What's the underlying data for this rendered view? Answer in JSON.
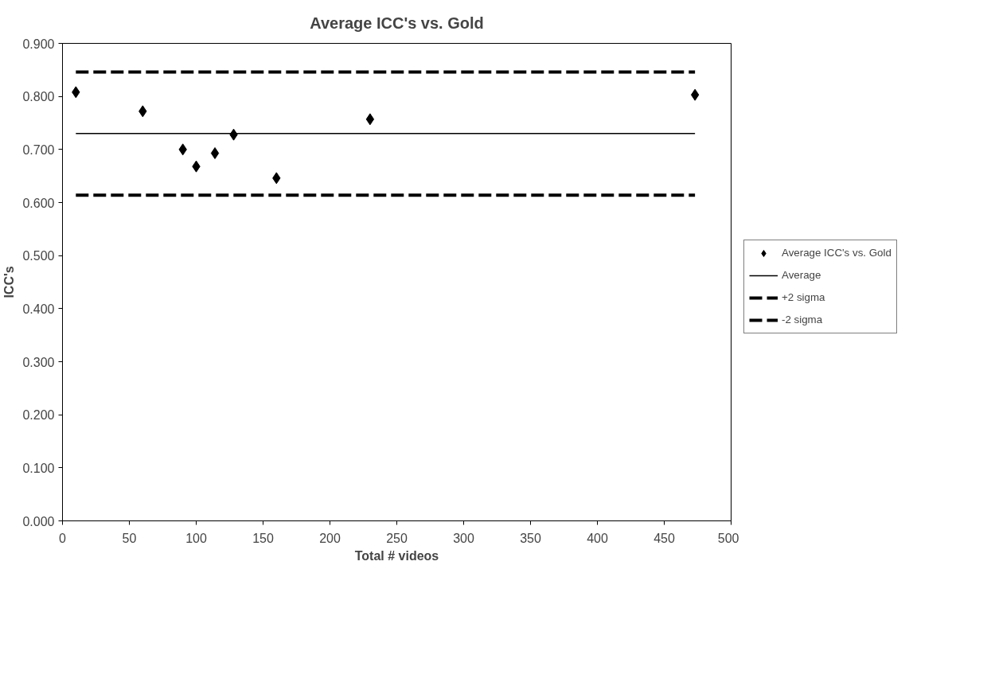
{
  "chart_data": {
    "type": "scatter",
    "title": "Average ICC's vs. Gold",
    "xlabel": "Total # videos",
    "ylabel": "ICC's",
    "xlim": [
      0,
      500
    ],
    "xticks": [
      0,
      50,
      100,
      150,
      200,
      250,
      300,
      350,
      400,
      450,
      500
    ],
    "ylim": [
      0,
      0.9
    ],
    "yticks": [
      {
        "value": 0,
        "label": "0.000"
      },
      {
        "value": 0.1,
        "label": "0.100"
      },
      {
        "value": 0.2,
        "label": "0.200"
      },
      {
        "value": 0.3,
        "label": "0.300"
      },
      {
        "value": 0.4,
        "label": "0.400"
      },
      {
        "value": 0.5,
        "label": "0.500"
      },
      {
        "value": 0.6,
        "label": "0.600"
      },
      {
        "value": 0.7,
        "label": "0.700"
      },
      {
        "value": 0.8,
        "label": "0.800"
      },
      {
        "value": 0.9,
        "label": "0.900"
      }
    ],
    "grid": false,
    "legend": "right",
    "series": [
      {
        "name": "Average ICC's vs. Gold",
        "marker": "diamond",
        "color": "#000000",
        "x": [
          10,
          60,
          90,
          100,
          114,
          128,
          160,
          230,
          473
        ],
        "values": [
          0.808,
          0.772,
          0.7,
          0.668,
          0.693,
          0.728,
          0.646,
          0.757,
          0.803
        ]
      },
      {
        "name": "Average",
        "type": "line",
        "line_style": "solid",
        "color": "#000000",
        "x": [
          10,
          473
        ],
        "values": [
          0.73,
          0.73
        ]
      },
      {
        "name": "+2 sigma",
        "type": "line",
        "line_style": "dashed",
        "color": "#000000",
        "x": [
          10,
          473
        ],
        "values": [
          0.846,
          0.846
        ]
      },
      {
        "name": "-2 sigma",
        "type": "line",
        "line_style": "dashed",
        "color": "#000000",
        "x": [
          10,
          473
        ],
        "values": [
          0.614,
          0.614
        ]
      }
    ]
  }
}
